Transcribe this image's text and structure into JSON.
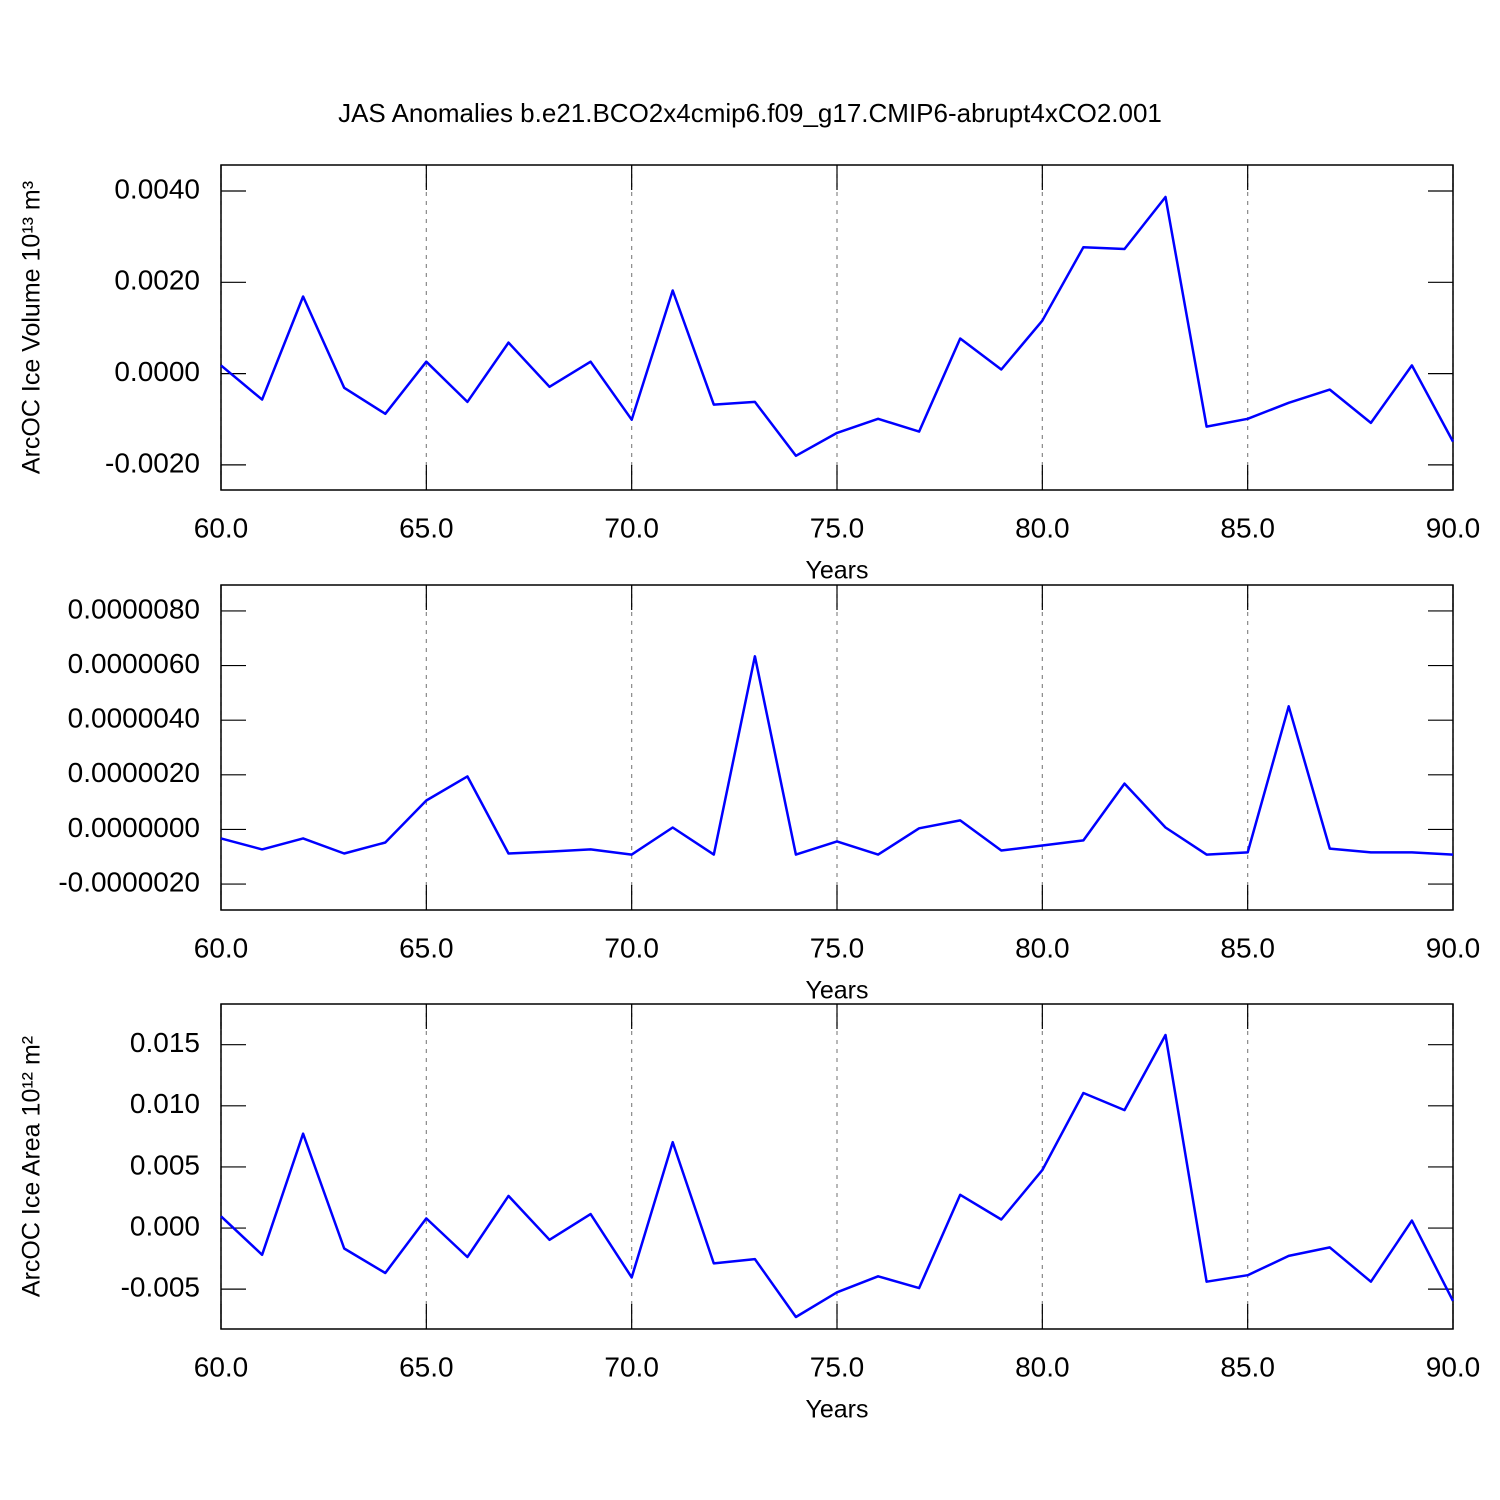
{
  "chart_data": [
    {
      "type": "line",
      "title": "JAS Anomalies b.e21.BCO2x4cmip6.f09_g17.CMIP6-abrupt4xCO2.001",
      "xlabel": "Years",
      "ylabel": "ArcOC Ice Volume 10¹³ m³",
      "color": "#0000ff",
      "xgrid": true,
      "x": [
        60,
        61,
        62,
        63,
        64,
        65,
        66,
        67,
        68,
        69,
        70,
        71,
        72,
        73,
        74,
        75,
        76,
        77,
        78,
        79,
        80,
        81,
        82,
        83,
        84,
        85,
        86,
        87,
        88,
        89,
        90
      ],
      "values": [
        0.00018,
        -0.00057,
        0.00169,
        -0.00031,
        -0.00088,
        0.00026,
        -0.00062,
        0.00068,
        -0.00029,
        0.00026,
        -0.00101,
        0.00182,
        -0.00068,
        -0.00062,
        -0.0018,
        -0.0013,
        -0.00099,
        -0.00127,
        0.00077,
        9e-05,
        0.00116,
        0.00277,
        0.00273,
        0.00387,
        -0.00116,
        -0.00099,
        -0.00064,
        -0.00035,
        -0.00108,
        0.00018,
        -0.00149
      ],
      "xlim": [
        60,
        90
      ],
      "xticks": [
        {
          "value": 60,
          "label": "60.0"
        },
        {
          "value": 65,
          "label": "65.0"
        },
        {
          "value": 70,
          "label": "70.0"
        },
        {
          "value": 75,
          "label": "75.0"
        },
        {
          "value": 80,
          "label": "80.0"
        },
        {
          "value": 85,
          "label": "85.0"
        },
        {
          "value": 90,
          "label": "90.0"
        }
      ],
      "ylim": [
        -0.00255,
        0.00457
      ],
      "yticks": [
        {
          "value": 0.004,
          "label": "0.0040"
        },
        {
          "value": 0.002,
          "label": "0.0020"
        },
        {
          "value": 0,
          "label": "0.0000"
        },
        {
          "value": -0.002,
          "label": "-0.0020"
        }
      ]
    },
    {
      "type": "line",
      "xlabel": "Years",
      "color": "#0000ff",
      "xgrid": true,
      "x": [
        60,
        61,
        62,
        63,
        64,
        65,
        66,
        67,
        68,
        69,
        70,
        71,
        72,
        73,
        74,
        75,
        76,
        77,
        78,
        79,
        80,
        81,
        82,
        83,
        84,
        85,
        86,
        87,
        88,
        89,
        90
      ],
      "values": [
        -3.3e-07,
        -7.3e-07,
        -3.3e-07,
        -8.8e-07,
        -4.8e-07,
        1.06e-06,
        1.94e-06,
        -8.8e-07,
        -8.1e-07,
        -7.3e-07,
        -9.2e-07,
        7e-08,
        -9.2e-07,
        6.34e-06,
        -9.2e-07,
        -4.4e-07,
        -9.2e-07,
        4e-08,
        3.3e-07,
        -7.7e-07,
        -5.9e-07,
        -4e-07,
        1.68e-06,
        7e-08,
        -9.2e-07,
        -8.4e-07,
        4.51e-06,
        -7e-07,
        -8.4e-07,
        -8.4e-07,
        -9.2e-07
      ],
      "xlim": [
        60,
        90
      ],
      "xticks": [
        {
          "value": 60,
          "label": "60.0"
        },
        {
          "value": 65,
          "label": "65.0"
        },
        {
          "value": 70,
          "label": "70.0"
        },
        {
          "value": 75,
          "label": "75.0"
        },
        {
          "value": 80,
          "label": "80.0"
        },
        {
          "value": 85,
          "label": "85.0"
        },
        {
          "value": 90,
          "label": "90.0"
        }
      ],
      "ylim": [
        -2.95e-06,
        8.95e-06
      ],
      "yticks": [
        {
          "value": 8e-06,
          "label": "0.0000080"
        },
        {
          "value": 6e-06,
          "label": "0.0000060"
        },
        {
          "value": 4e-06,
          "label": "0.0000040"
        },
        {
          "value": 2e-06,
          "label": "0.0000020"
        },
        {
          "value": 0,
          "label": "0.0000000"
        },
        {
          "value": -2e-06,
          "label": "-0.0000020"
        }
      ]
    },
    {
      "type": "line",
      "xlabel": "Years",
      "ylabel": "ArcOC Ice Area 10¹² m²",
      "color": "#0000ff",
      "xgrid": true,
      "x": [
        60,
        61,
        62,
        63,
        64,
        65,
        66,
        67,
        68,
        69,
        70,
        71,
        72,
        73,
        74,
        75,
        76,
        77,
        78,
        79,
        80,
        81,
        82,
        83,
        84,
        85,
        86,
        87,
        88,
        89,
        90
      ],
      "values": [
        0.00096,
        -0.00219,
        0.00772,
        -0.00167,
        -0.00368,
        0.00079,
        -0.00237,
        0.00263,
        -0.00096,
        0.00114,
        -0.00404,
        0.00702,
        -0.00289,
        -0.00254,
        -0.00728,
        -0.00526,
        -0.00395,
        -0.00491,
        0.00272,
        0.0007,
        0.00474,
        0.01105,
        0.00965,
        0.01579,
        -0.00439,
        -0.00386,
        -0.00228,
        -0.00158,
        -0.00439,
        0.00061,
        -0.00596
      ],
      "xlim": [
        60,
        90
      ],
      "xticks": [
        {
          "value": 60,
          "label": "60.0"
        },
        {
          "value": 65,
          "label": "65.0"
        },
        {
          "value": 70,
          "label": "70.0"
        },
        {
          "value": 75,
          "label": "75.0"
        },
        {
          "value": 80,
          "label": "80.0"
        },
        {
          "value": 85,
          "label": "85.0"
        },
        {
          "value": 90,
          "label": "90.0"
        }
      ],
      "ylim": [
        -0.00826,
        0.01833
      ],
      "yticks": [
        {
          "value": 0.015,
          "label": "0.015"
        },
        {
          "value": 0.01,
          "label": "0.010"
        },
        {
          "value": 0.005,
          "label": "0.005"
        },
        {
          "value": 0,
          "label": "0.000"
        },
        {
          "value": -0.005,
          "label": "-0.005"
        }
      ]
    }
  ]
}
